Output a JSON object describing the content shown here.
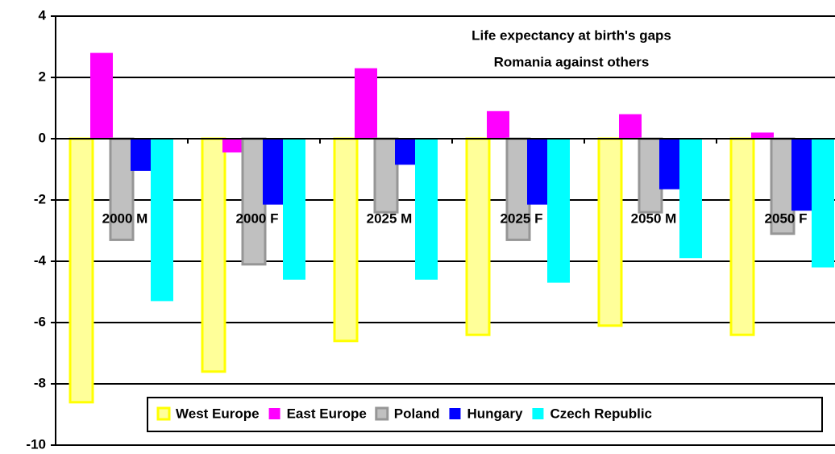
{
  "chart_data": {
    "type": "bar",
    "title": "Life expectancy at birth's gaps",
    "subtitle": "Romania against others",
    "categories": [
      "2000 M",
      "2000 F",
      "2025 M",
      "2025 F",
      "2050 M",
      "2050 F"
    ],
    "series": [
      {
        "name": "West Europe",
        "color": "#ffff99",
        "values": [
          -8.6,
          -7.6,
          -6.6,
          -6.4,
          -6.1,
          -6.4
        ]
      },
      {
        "name": "East Europe",
        "color": "#ff00ff",
        "values": [
          2.8,
          -0.45,
          2.3,
          0.9,
          0.8,
          0.2
        ]
      },
      {
        "name": "Poland",
        "color": "#c0c0c0",
        "values": [
          -3.3,
          -4.1,
          -2.4,
          -3.3,
          -2.4,
          -3.1
        ]
      },
      {
        "name": "Hungary",
        "color": "#0000ff",
        "values": [
          -1.05,
          -2.15,
          -0.85,
          -2.15,
          -1.65,
          -2.35
        ]
      },
      {
        "name": "Czech Republic",
        "color": "#00ffff",
        "values": [
          -5.3,
          -4.6,
          -4.6,
          -4.7,
          -3.9,
          -4.2
        ]
      }
    ],
    "ylim": [
      -10,
      4
    ],
    "yticks": [
      -10,
      -8,
      -6,
      -4,
      -2,
      0,
      2,
      4
    ],
    "grid": true
  }
}
